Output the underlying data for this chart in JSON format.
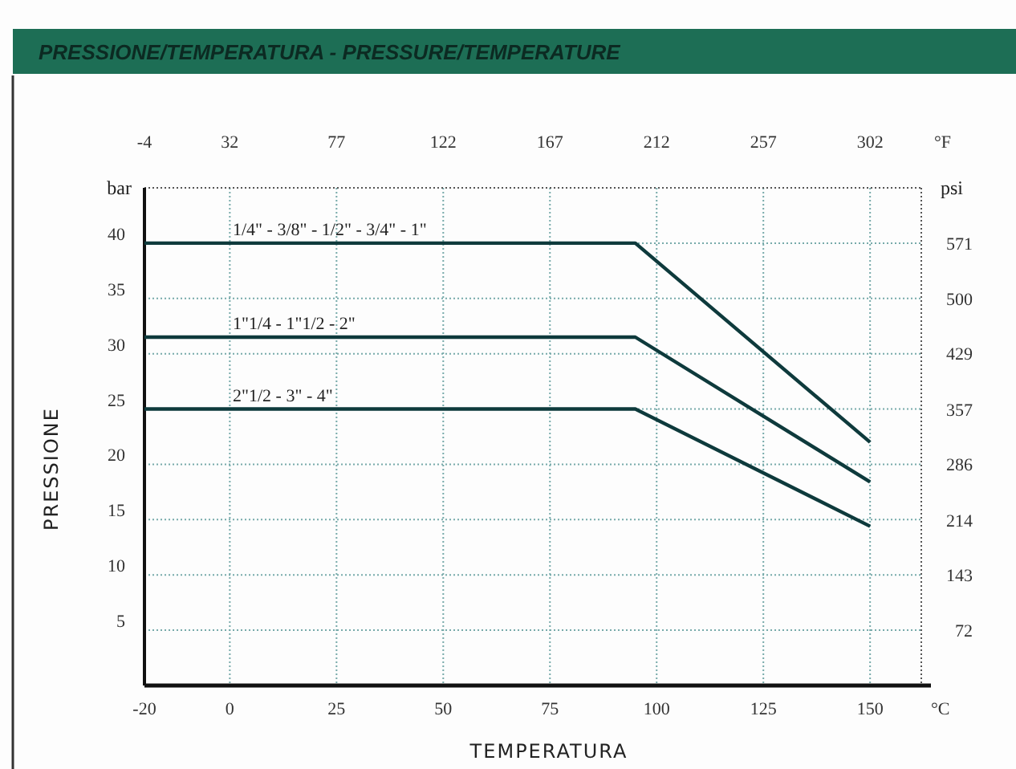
{
  "chart_data": {
    "type": "line",
    "title": "PRESSIONE/TEMPERATURA  -  PRESSURE/TEMPERATURE",
    "xlabel": "TEMPERATURA",
    "ylabel": "PRESSIONE",
    "x2label": "°F",
    "y2label": "psi",
    "annotations": [
      "bar",
      "°C"
    ],
    "xlim": [
      -20,
      162
    ],
    "xticks": [
      -20,
      0,
      25,
      50,
      75,
      100,
      125,
      150
    ],
    "x2lim": [
      -4,
      323.6
    ],
    "x2ticks": [
      -4,
      32,
      77,
      122,
      167,
      212,
      257,
      302
    ],
    "ylim": [
      0,
      45
    ],
    "yticks": [
      {
        "value": 0,
        "label": null
      },
      5,
      10,
      15,
      20,
      25,
      30,
      35,
      40
    ],
    "y2lim": [
      0,
      643
    ],
    "y2ticks": [
      72,
      143,
      214,
      286,
      357,
      429,
      500,
      571
    ],
    "grid": true,
    "marker": "none",
    "line_style": "solid",
    "series": [
      {
        "name": "1/4\" - 3/8\" - 1/2\" - 3/4\" - 1\"",
        "color": "#0e3a3c",
        "x": [
          -20,
          95,
          150
        ],
        "values": [
          40,
          40,
          22
        ]
      },
      {
        "name": "1\"1/4 - 1\"1/2 - 2\"",
        "color": "#0e3a3c",
        "x": [
          -20,
          95,
          150
        ],
        "values": [
          31.5,
          31.5,
          18.4
        ]
      },
      {
        "name": "2\"1/2 - 3\" - 4\"",
        "color": "#0e3a3c",
        "x": [
          -20,
          95,
          150
        ],
        "values": [
          25,
          25,
          14.4
        ]
      }
    ]
  }
}
